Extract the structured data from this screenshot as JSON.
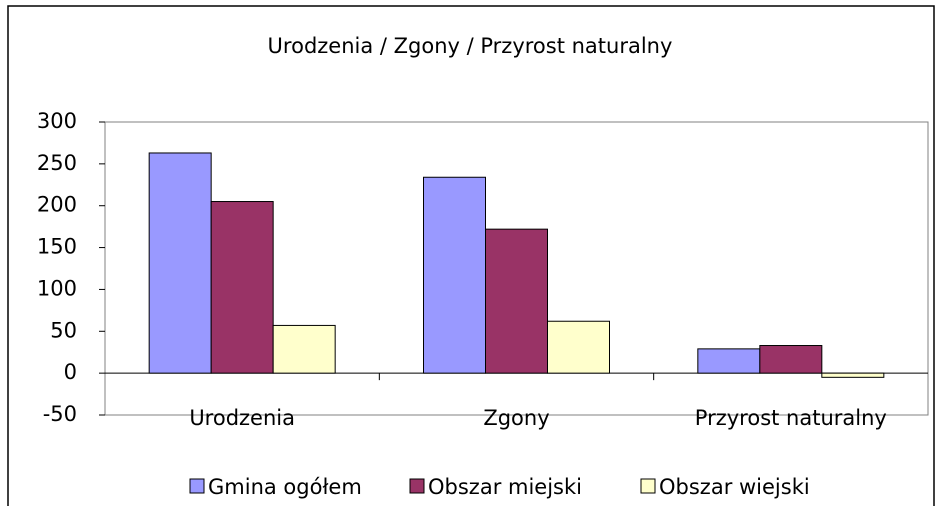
{
  "chart_data": {
    "type": "bar",
    "title": "Urodzenia / Zgony / Przyrost naturalny",
    "categories": [
      "Urodzenia",
      "Zgony",
      "Przyrost naturalny"
    ],
    "series": [
      {
        "name": "Gmina ogółem",
        "color": "#9999ff",
        "values": [
          263,
          234,
          29
        ]
      },
      {
        "name": "Obszar miejski",
        "color": "#993366",
        "values": [
          205,
          172,
          33
        ]
      },
      {
        "name": "Obszar wiejski",
        "color": "#ffffcc",
        "values": [
          57,
          62,
          -5
        ]
      }
    ],
    "ylim": [
      -50,
      300
    ],
    "yticks": [
      -50,
      0,
      50,
      100,
      150,
      200,
      250,
      300
    ],
    "grid": false,
    "legend": "bottom"
  }
}
